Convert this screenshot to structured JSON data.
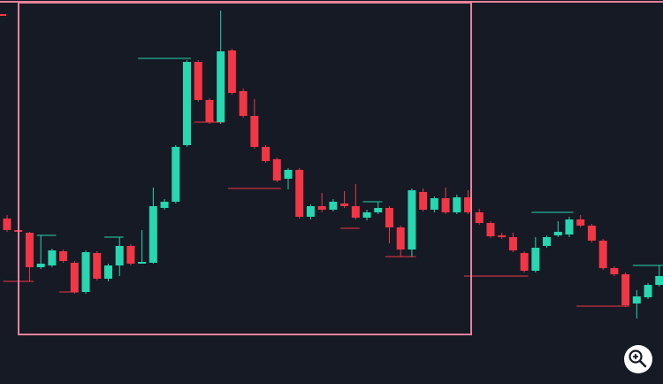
{
  "chart_data": {
    "type": "candlestick",
    "ylim": [
      0,
      434
    ],
    "up_color": "#26d7b0",
    "down_color": "#f23645",
    "open": [
      187,
      174,
      171,
      132,
      134,
      150,
      137,
      104,
      148,
      119,
      134,
      156,
      136,
      137,
      199,
      206,
      270,
      364,
      321,
      296,
      377,
      331,
      303,
      268,
      254,
      232,
      242,
      189,
      201,
      197,
      204,
      201,
      188,
      194,
      199,
      177,
      152,
      217,
      197,
      210,
      194,
      211,
      194,
      182,
      168,
      166,
      148,
      128,
      156,
      168,
      169,
      186,
      179,
      162,
      131,
      124,
      91,
      98,
      112
    ],
    "high": [
      191,
      176,
      172,
      168,
      153,
      152,
      139,
      151,
      150,
      136,
      166,
      158,
      174,
      222,
      209,
      270,
      366,
      366,
      323,
      422,
      379,
      334,
      322,
      270,
      256,
      244,
      244,
      203,
      216,
      209,
      218,
      226,
      197,
      206,
      201,
      179,
      221,
      221,
      212,
      222,
      214,
      219,
      198,
      184,
      171,
      171,
      150,
      166,
      168,
      184,
      189,
      191,
      181,
      164,
      133,
      126,
      106,
      114,
      134
    ],
    "low": [
      172,
      168,
      116,
      130,
      132,
      137,
      102,
      102,
      117,
      116,
      122,
      134,
      136,
      136,
      197,
      204,
      268,
      319,
      294,
      294,
      327,
      301,
      266,
      250,
      228,
      220,
      187,
      186,
      194,
      195,
      199,
      186,
      185,
      192,
      159,
      144,
      144,
      195,
      194,
      192,
      192,
      192,
      180,
      165,
      164,
      149,
      126,
      126,
      154,
      166,
      166,
      177,
      160,
      129,
      122,
      87,
      74,
      96,
      110
    ],
    "close": [
      174,
      172,
      132,
      136,
      151,
      139,
      104,
      149,
      119,
      134,
      156,
      136,
      138,
      201,
      206,
      268,
      364,
      321,
      296,
      376,
      329,
      303,
      268,
      252,
      230,
      242,
      189,
      201,
      197,
      206,
      201,
      188,
      194,
      199,
      177,
      152,
      219,
      197,
      210,
      194,
      211,
      194,
      182,
      167,
      166,
      151,
      128,
      154,
      166,
      172,
      186,
      179,
      162,
      131,
      124,
      89,
      99,
      112,
      122
    ],
    "levels": [
      {
        "value": 116,
        "start": 0,
        "end": 2,
        "color": "#f23645"
      },
      {
        "value": 168,
        "start": 3,
        "end": 4,
        "color": "#26d7b0"
      },
      {
        "value": 104,
        "start": 5,
        "end": 6,
        "color": "#f23645"
      },
      {
        "value": 166,
        "start": 9,
        "end": 10,
        "color": "#26d7b0"
      },
      {
        "value": 368,
        "start": 12,
        "end": 16,
        "color": "#26d7b0"
      },
      {
        "value": 296,
        "start": 17,
        "end": 19,
        "color": "#f23645"
      },
      {
        "value": 221,
        "start": 20,
        "end": 24,
        "color": "#f23645"
      },
      {
        "value": 176,
        "start": 30,
        "end": 31,
        "color": "#f23645"
      },
      {
        "value": 206,
        "start": 32,
        "end": 33,
        "color": "#26d7b0"
      },
      {
        "value": 144,
        "start": 34,
        "end": 36,
        "color": "#f23645"
      },
      {
        "value": 122,
        "start": 41,
        "end": 46,
        "color": "#f23645"
      },
      {
        "value": 194,
        "start": 47,
        "end": 50,
        "color": "#26d7b0"
      },
      {
        "value": 88,
        "start": 51,
        "end": 55,
        "color": "#f23645"
      },
      {
        "value": 134,
        "start": 56,
        "end": 58,
        "color": "#26d7b0"
      }
    ]
  }
}
